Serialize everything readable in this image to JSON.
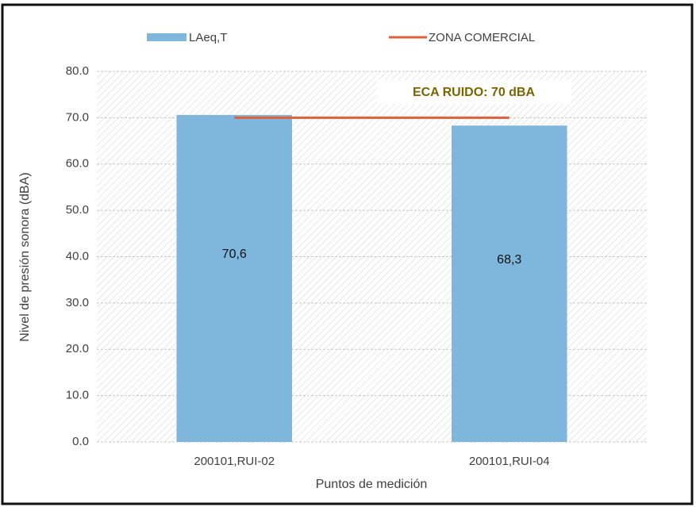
{
  "chart_data": {
    "type": "bar",
    "y_label": "Nivel de presión sonora (dBA)",
    "x_label": "Puntos de medición",
    "annotation": "ECA RUIDO: 70 dBA",
    "categories": [
      "200101,RUI-02",
      "200101,RUI-04"
    ],
    "series": [
      {
        "name": "LAeq,T",
        "type": "bar",
        "color": "#7fb6dc",
        "values": [
          70.6,
          68.3
        ],
        "value_labels": [
          "70,6",
          "68,3"
        ]
      },
      {
        "name": "ZONA COMERCIAL",
        "type": "line",
        "color": "#e0603a",
        "values": [
          70,
          70
        ]
      }
    ],
    "ylim": [
      0,
      80
    ],
    "yticks": [
      {
        "value": 0,
        "label": "0.0"
      },
      {
        "value": 10,
        "label": "10.0"
      },
      {
        "value": 20,
        "label": "20.0"
      },
      {
        "value": 30,
        "label": "30.0"
      },
      {
        "value": 40,
        "label": "40.0"
      },
      {
        "value": 50,
        "label": "50.0"
      },
      {
        "value": 60,
        "label": "60.0"
      },
      {
        "value": 70,
        "label": "70.0"
      },
      {
        "value": 80,
        "label": "80.0"
      }
    ],
    "grid": true,
    "legend": "top"
  }
}
